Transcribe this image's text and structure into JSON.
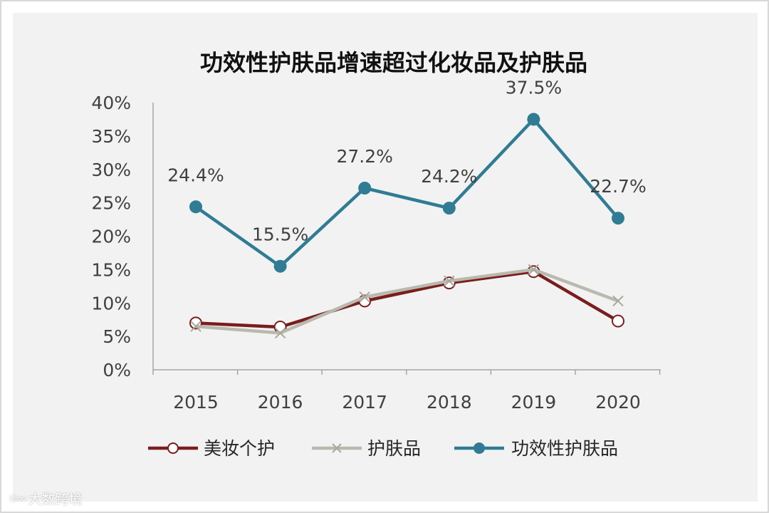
{
  "chart_data": {
    "type": "line",
    "title": "功效性护肤品增速超过化妆品及护肤品",
    "categories": [
      "2015",
      "2016",
      "2017",
      "2018",
      "2019",
      "2020"
    ],
    "ylim": [
      0,
      40
    ],
    "yticks": [
      "0%",
      "5%",
      "10%",
      "15%",
      "20%",
      "25%",
      "30%",
      "35%",
      "40%"
    ],
    "ytick_values": [
      0,
      5,
      10,
      15,
      20,
      25,
      30,
      35,
      40
    ],
    "xlabel": "",
    "ylabel": "",
    "legend_position": "bottom",
    "series": [
      {
        "name": "美妆个护",
        "values": [
          7.0,
          6.4,
          10.3,
          13.0,
          14.7,
          7.3
        ],
        "color": "#7a1d1d",
        "marker": "open-circle"
      },
      {
        "name": "护肤品",
        "values": [
          6.5,
          5.5,
          10.9,
          13.3,
          15.0,
          10.3
        ],
        "color": "#b9b9ae",
        "marker": "x"
      },
      {
        "name": "功效性护肤品",
        "values": [
          24.4,
          15.5,
          27.2,
          24.2,
          37.5,
          22.7
        ],
        "color": "#2f7c94",
        "marker": "filled-circle",
        "data_labels": [
          "24.4%",
          "15.5%",
          "27.2%",
          "24.2%",
          "37.5%",
          "22.7%"
        ]
      }
    ]
  },
  "watermark": {
    "icon": "♾∞",
    "text": "大数跨境"
  }
}
